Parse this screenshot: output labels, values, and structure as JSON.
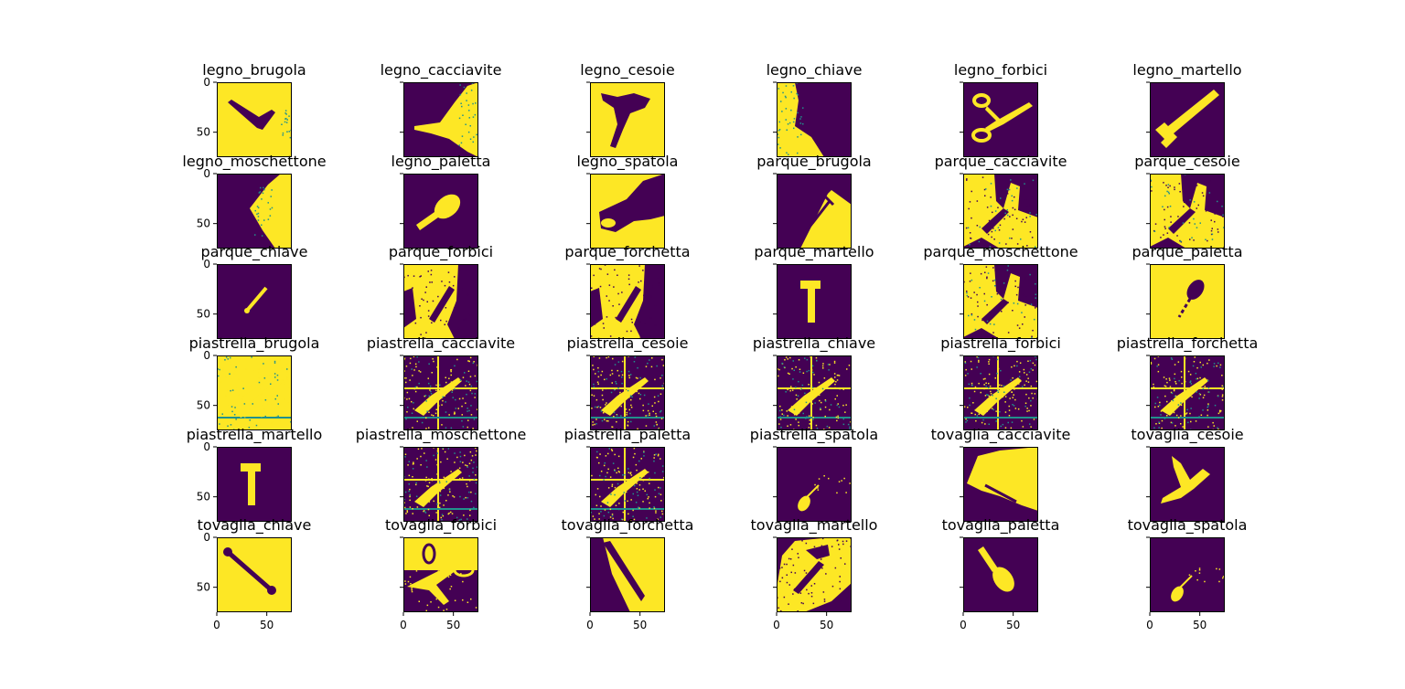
{
  "chart_data": {
    "type": "heatmap",
    "grid": {
      "rows": 6,
      "cols": 6
    },
    "image_size": [
      75,
      75
    ],
    "colormap": {
      "low": "#440154",
      "mid": "#21918c",
      "high": "#fde725"
    },
    "x_ticks": [
      "0",
      "50"
    ],
    "y_ticks": [
      "0",
      "50"
    ],
    "x_tick_values": [
      0,
      50
    ],
    "y_tick_values": [
      0,
      50
    ],
    "xlim": [
      0,
      75
    ],
    "ylim": [
      75,
      0
    ],
    "panels": [
      {
        "title": "legno_brugola",
        "background": "#fde725",
        "shape": "brugola"
      },
      {
        "title": "legno_cacciavite",
        "background": "#440154",
        "shape": "blob-right"
      },
      {
        "title": "legno_cesoie",
        "background": "#fde725",
        "shape": "cesoie"
      },
      {
        "title": "legno_chiave",
        "background": "#440154",
        "shape": "blob-left"
      },
      {
        "title": "legno_forbici",
        "background": "#440154",
        "shape": "forbici"
      },
      {
        "title": "legno_martello",
        "background": "#440154",
        "shape": "martello-diag"
      },
      {
        "title": "legno_moschettone",
        "background": "#440154",
        "shape": "triangle"
      },
      {
        "title": "legno_paletta",
        "background": "#440154",
        "shape": "paletta"
      },
      {
        "title": "legno_spatola",
        "background": "#fde725",
        "shape": "spatola"
      },
      {
        "title": "parque_brugola",
        "background": "#440154",
        "shape": "wedge"
      },
      {
        "title": "parque_cacciavite",
        "background": "#440154",
        "shape": "noisy"
      },
      {
        "title": "parque_cesoie",
        "background": "#440154",
        "shape": "noisy"
      },
      {
        "title": "parque_chiave",
        "background": "#440154",
        "shape": "chiave-small"
      },
      {
        "title": "parque_forbici",
        "background": "#fde725",
        "shape": "noisy-dark"
      },
      {
        "title": "parque_forchetta",
        "background": "#fde725",
        "shape": "noisy-dark"
      },
      {
        "title": "parque_martello",
        "background": "#440154",
        "shape": "martello-upright"
      },
      {
        "title": "parque_moschettone",
        "background": "#440154",
        "shape": "noisy"
      },
      {
        "title": "parque_paletta",
        "background": "#fde725",
        "shape": "paletta-dark"
      },
      {
        "title": "piastrella_brugola",
        "background": "#fde725",
        "shape": "tiles"
      },
      {
        "title": "piastrella_cacciavite",
        "background": "#440154",
        "shape": "tiles"
      },
      {
        "title": "piastrella_cesoie",
        "background": "#440154",
        "shape": "tiles"
      },
      {
        "title": "piastrella_chiave",
        "background": "#440154",
        "shape": "tiles"
      },
      {
        "title": "piastrella_forbici",
        "background": "#440154",
        "shape": "tiles"
      },
      {
        "title": "piastrella_forchetta",
        "background": "#440154",
        "shape": "tiles"
      },
      {
        "title": "piastrella_martello",
        "background": "#440154",
        "shape": "martello-upright"
      },
      {
        "title": "piastrella_moschettone",
        "background": "#440154",
        "shape": "tiles"
      },
      {
        "title": "piastrella_paletta",
        "background": "#440154",
        "shape": "tiles"
      },
      {
        "title": "piastrella_spatola",
        "background": "#440154",
        "shape": "spatola-small"
      },
      {
        "title": "tovaglia_cacciavite",
        "background": "#440154",
        "shape": "blob-big"
      },
      {
        "title": "tovaglia_cesoie",
        "background": "#440154",
        "shape": "cesoie-light"
      },
      {
        "title": "tovaglia_chiave",
        "background": "#fde725",
        "shape": "chiave-dark"
      },
      {
        "title": "tovaglia_forbici",
        "background": "#fde725",
        "shape": "forbici-dark"
      },
      {
        "title": "tovaglia_forchetta",
        "background": "#fde725",
        "shape": "forchetta-dark"
      },
      {
        "title": "tovaglia_martello",
        "background": "#440154",
        "shape": "martello-noisy"
      },
      {
        "title": "tovaglia_paletta",
        "background": "#440154",
        "shape": "paletta-light"
      },
      {
        "title": "tovaglia_spatola",
        "background": "#440154",
        "shape": "spatola-small"
      }
    ]
  }
}
